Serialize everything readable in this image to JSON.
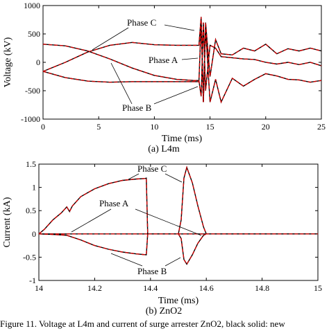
{
  "chart_data": [
    {
      "type": "line",
      "subplot_label": "(a) L4m",
      "xlabel": "Time (ms)",
      "ylabel": "Voltage (kV)",
      "xlim": [
        0,
        25
      ],
      "ylim": [
        -1000,
        1000
      ],
      "xticks": [
        0,
        5,
        10,
        15,
        20,
        25
      ],
      "yticks": [
        -1000,
        -500,
        0,
        500,
        1000
      ],
      "grid": false,
      "annotations": [
        "Phase C",
        "Phase A",
        "Phase B"
      ],
      "line_styles": {
        "solid": "#000000",
        "dashed": "#cc0000"
      },
      "series": [
        {
          "name": "Phase A",
          "x": [
            0,
            2,
            4,
            6,
            8,
            10,
            12,
            13.5,
            14,
            14.2,
            14.4,
            14.6,
            15,
            15.5,
            16,
            17,
            18,
            19,
            20,
            21,
            22,
            23,
            24,
            25
          ],
          "y": [
            320,
            290,
            200,
            60,
            -100,
            -230,
            -300,
            -320,
            -320,
            -600,
            700,
            -500,
            300,
            250,
            100,
            80,
            60,
            50,
            0,
            -30,
            0,
            -40,
            0,
            -60
          ]
        },
        {
          "name": "Phase B",
          "x": [
            0,
            2,
            4,
            6,
            8,
            10,
            12,
            13.5,
            14,
            14.2,
            14.4,
            14.6,
            15,
            15.5,
            16,
            17,
            18,
            19,
            20,
            21,
            22,
            23,
            24,
            25
          ],
          "y": [
            -160,
            -270,
            -330,
            -350,
            -340,
            -340,
            -340,
            -340,
            -340,
            700,
            -700,
            600,
            -700,
            -300,
            -700,
            -280,
            -420,
            -300,
            -200,
            -240,
            -300,
            -310,
            -350,
            -320
          ]
        },
        {
          "name": "Phase C",
          "x": [
            0,
            2,
            4,
            6,
            8,
            10,
            12,
            13.5,
            14,
            14.2,
            14.4,
            14.6,
            15,
            15.5,
            16,
            17,
            18,
            19,
            20,
            21,
            22,
            23,
            24,
            25
          ],
          "y": [
            -160,
            0,
            180,
            300,
            350,
            310,
            300,
            300,
            300,
            800,
            -700,
            700,
            -250,
            400,
            150,
            130,
            250,
            200,
            320,
            150,
            240,
            200,
            250,
            200
          ]
        }
      ]
    },
    {
      "type": "line",
      "subplot_label": "(b) ZnO2",
      "xlabel": "Time (ms)",
      "ylabel": "Current (kA)",
      "xlim": [
        14,
        15
      ],
      "ylim": [
        -1,
        1.5
      ],
      "xticks": [
        14,
        14.2,
        14.4,
        14.6,
        14.8,
        15
      ],
      "yticks": [
        -1,
        -0.5,
        0,
        0.5,
        1,
        1.5
      ],
      "grid": false,
      "annotations": [
        "Phase C",
        "Phase A",
        "Phase B"
      ],
      "line_styles": {
        "solid": "#000000",
        "dashed": "#cc0000"
      },
      "series": [
        {
          "name": "Phase A",
          "x": [
            14,
            14.2,
            14.4,
            14.5,
            14.6,
            14.8,
            15
          ],
          "y": [
            0,
            0,
            0,
            0,
            0,
            0,
            0
          ]
        },
        {
          "name": "Phase B",
          "x": [
            14,
            14.05,
            14.1,
            14.15,
            14.2,
            14.25,
            14.3,
            14.35,
            14.385,
            14.39,
            14.5,
            14.51,
            14.52,
            14.53,
            14.55,
            14.57,
            14.59,
            14.6,
            15
          ],
          "y": [
            0,
            -0.01,
            -0.03,
            -0.13,
            -0.25,
            -0.33,
            -0.39,
            -0.43,
            -0.45,
            0,
            0,
            -0.1,
            -0.55,
            -0.65,
            -0.45,
            -0.2,
            -0.03,
            0,
            0
          ]
        },
        {
          "name": "Phase C",
          "x": [
            14,
            14.02,
            14.05,
            14.08,
            14.1,
            14.11,
            14.12,
            14.15,
            14.2,
            14.25,
            14.3,
            14.35,
            14.38,
            14.385,
            14.39,
            14.5,
            14.51,
            14.52,
            14.53,
            14.55,
            14.57,
            14.59,
            14.6,
            15
          ],
          "y": [
            0,
            0.1,
            0.3,
            0.45,
            0.58,
            0.48,
            0.6,
            0.8,
            0.97,
            1.08,
            1.15,
            1.18,
            1.19,
            1.2,
            0,
            0,
            0.3,
            1.2,
            1.43,
            1.1,
            0.6,
            0.15,
            0,
            0
          ]
        }
      ]
    }
  ],
  "caption": "Figure 11. Voltage at L4m and current of surge arrester ZnO2, black solid: new"
}
